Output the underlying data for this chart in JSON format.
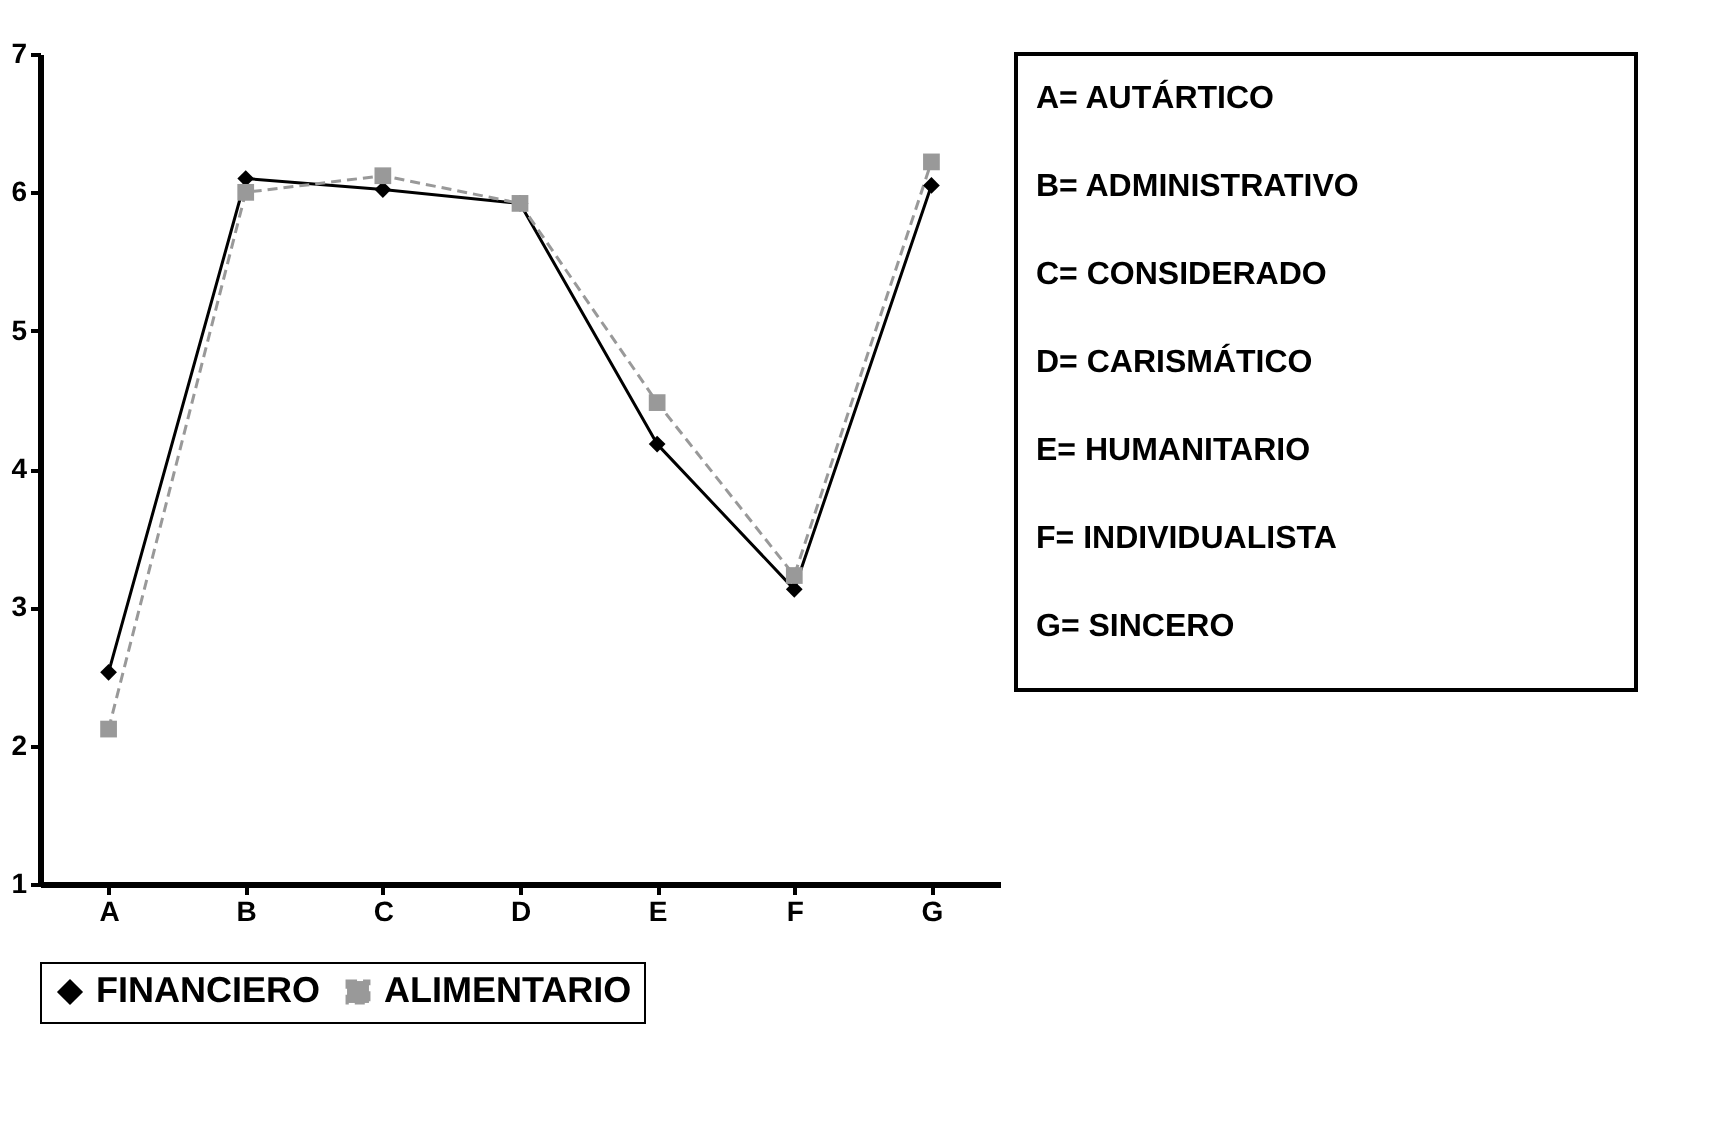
{
  "chart_data": {
    "type": "line",
    "categories": [
      "A",
      "B",
      "C",
      "D",
      "E",
      "F",
      "G"
    ],
    "series": [
      {
        "name": "FINANCIERO",
        "color": "#000000",
        "marker": "diamond",
        "line_style": "solid",
        "values": [
          2.53,
          6.1,
          6.02,
          5.92,
          4.18,
          3.13,
          6.05
        ]
      },
      {
        "name": "ALIMENTARIO",
        "color": "#999999",
        "marker": "square",
        "line_style": "dashed",
        "values": [
          2.12,
          6.0,
          6.12,
          5.92,
          4.48,
          3.23,
          6.22
        ]
      }
    ],
    "ylim": [
      1,
      7
    ],
    "yticks": [
      1,
      2,
      3,
      4,
      5,
      6,
      7
    ],
    "grid": false,
    "legend": "bottom",
    "annotations": [
      "A= AUTÁRTICO",
      "B= ADMINISTRATIVO",
      "C= CONSIDERADO",
      "D= CARISMÁTICO",
      "E= HUMANITARIO",
      "F= INDIVIDUALISTA",
      "G= SINCERO"
    ]
  }
}
